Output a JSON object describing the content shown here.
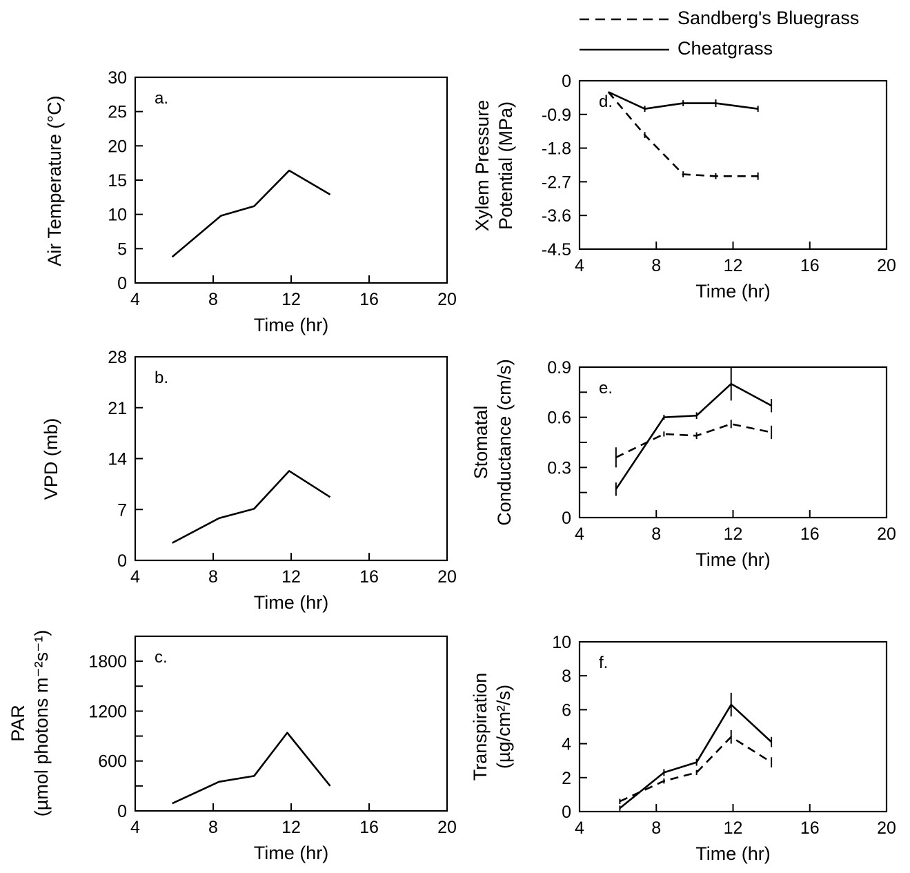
{
  "legend": [
    {
      "label": "Sandberg's Bluegrass",
      "style": "dashed"
    },
    {
      "label": "Cheatgrass",
      "style": "solid"
    }
  ],
  "chart_data": [
    {
      "id": "a",
      "type": "line",
      "panel_label": "a.",
      "xlabel": "Time (hr)",
      "ylabel": [
        "Air Temperature (°C)"
      ],
      "xlim": [
        4,
        20
      ],
      "xticks": [
        4,
        8,
        12,
        16,
        20
      ],
      "ylim": [
        0,
        30
      ],
      "yticks": [
        0,
        5,
        10,
        15,
        20,
        25,
        30
      ],
      "yticklabels": [
        "0",
        "5",
        "10",
        "15",
        "20",
        "25",
        "30"
      ],
      "series": [
        {
          "style": "solid",
          "x": [
            5.9,
            8.4,
            10.1,
            11.9,
            14.0
          ],
          "y": [
            3.8,
            9.8,
            11.2,
            16.4,
            12.9
          ]
        }
      ]
    },
    {
      "id": "b",
      "type": "line",
      "panel_label": "b.",
      "xlabel": "Time (hr)",
      "ylabel": [
        "VPD (mb)"
      ],
      "xlim": [
        4,
        20
      ],
      "xticks": [
        4,
        8,
        12,
        16,
        20
      ],
      "ylim": [
        0,
        28
      ],
      "yticks": [
        0,
        7,
        14,
        21,
        28
      ],
      "yticklabels": [
        "0",
        "7",
        "14",
        "21",
        "28"
      ],
      "series": [
        {
          "style": "solid",
          "x": [
            5.9,
            8.3,
            10.1,
            11.9,
            14.0
          ],
          "y": [
            2.4,
            5.8,
            7.1,
            12.3,
            8.7
          ]
        }
      ]
    },
    {
      "id": "c",
      "type": "line",
      "panel_label": "c.",
      "xlabel": "Time (hr)",
      "ylabel": [
        "PAR",
        "(µmol photons m⁻²s⁻¹)"
      ],
      "xlim": [
        4,
        20
      ],
      "xticks": [
        4,
        8,
        12,
        16,
        20
      ],
      "ylim": [
        0,
        2100
      ],
      "yticks": [
        0,
        300,
        600,
        900,
        1200,
        1500,
        1800
      ],
      "yticklabels": [
        "0",
        "",
        "600",
        "",
        "1200",
        "",
        "1800"
      ],
      "series": [
        {
          "style": "solid",
          "x": [
            5.9,
            8.3,
            10.1,
            11.8,
            14.0
          ],
          "y": [
            90,
            350,
            420,
            940,
            300
          ]
        }
      ]
    },
    {
      "id": "d",
      "type": "line",
      "panel_label": "d.",
      "xlabel": "Time (hr)",
      "ylabel": [
        "Xylem Pressure",
        "Potential (MPa)"
      ],
      "xlim": [
        4,
        20
      ],
      "xticks": [
        4,
        8,
        12,
        16,
        20
      ],
      "ylim": [
        -4.5,
        0
      ],
      "yticks": [
        -4.5,
        -3.6,
        -2.7,
        -1.8,
        -0.9,
        0
      ],
      "yticklabels": [
        "-4.5",
        "-3.6",
        "-2.7",
        "-1.8",
        "-0.9",
        "0"
      ],
      "series": [
        {
          "style": "solid",
          "x": [
            5.5,
            7.4,
            9.4,
            11.1,
            13.3
          ],
          "y": [
            -0.3,
            -0.75,
            -0.6,
            -0.6,
            -0.75
          ],
          "err": [
            0,
            0.08,
            0.08,
            0.1,
            0.08
          ]
        },
        {
          "style": "dashed",
          "x": [
            5.5,
            7.4,
            9.4,
            11.1,
            13.3
          ],
          "y": [
            -0.3,
            -1.45,
            -2.5,
            -2.55,
            -2.55
          ],
          "err": [
            0,
            0.08,
            0.08,
            0.08,
            0.1
          ]
        }
      ]
    },
    {
      "id": "e",
      "type": "line",
      "panel_label": "e.",
      "xlabel": "Time (hr)",
      "ylabel": [
        "Stomatal",
        "Conductance (cm/s)"
      ],
      "xlim": [
        4,
        20
      ],
      "xticks": [
        4,
        8,
        12,
        16,
        20
      ],
      "ylim": [
        0,
        0.9
      ],
      "yticks": [
        0,
        0.15,
        0.3,
        0.45,
        0.6,
        0.75,
        0.9
      ],
      "yticklabels": [
        "0",
        "",
        "0.3",
        "",
        "0.6",
        "",
        "0.9"
      ],
      "series": [
        {
          "style": "solid",
          "x": [
            5.9,
            8.4,
            10.1,
            11.9,
            14.0
          ],
          "y": [
            0.17,
            0.6,
            0.61,
            0.8,
            0.67
          ],
          "err": [
            0.04,
            0.015,
            0.02,
            0.1,
            0.04
          ]
        },
        {
          "style": "dashed",
          "x": [
            5.9,
            8.4,
            10.1,
            11.9,
            14.0
          ],
          "y": [
            0.36,
            0.5,
            0.49,
            0.56,
            0.51
          ],
          "err": [
            0.06,
            0.015,
            0.02,
            0.025,
            0.04
          ]
        }
      ]
    },
    {
      "id": "f",
      "type": "line",
      "panel_label": "f.",
      "xlabel": "Time (hr)",
      "ylabel": [
        "Transpiration",
        "(µg/cm²/s)"
      ],
      "xlim": [
        4,
        20
      ],
      "xticks": [
        4,
        8,
        12,
        16,
        20
      ],
      "ylim": [
        0,
        10
      ],
      "yticks": [
        0,
        2,
        4,
        6,
        8,
        10
      ],
      "yticklabels": [
        "0",
        "2",
        "4",
        "6",
        "8",
        "10"
      ],
      "series": [
        {
          "style": "solid",
          "x": [
            6.1,
            8.4,
            10.1,
            11.9,
            14.0
          ],
          "y": [
            0.2,
            2.3,
            2.9,
            6.3,
            4.1
          ],
          "err": [
            0.15,
            0.2,
            0.2,
            0.7,
            0.3
          ]
        },
        {
          "style": "dashed",
          "x": [
            6.1,
            8.4,
            10.1,
            11.9,
            14.0
          ],
          "y": [
            0.6,
            1.8,
            2.3,
            4.4,
            2.9
          ],
          "err": [
            0.15,
            0.15,
            0.15,
            0.4,
            0.3
          ]
        }
      ]
    }
  ]
}
